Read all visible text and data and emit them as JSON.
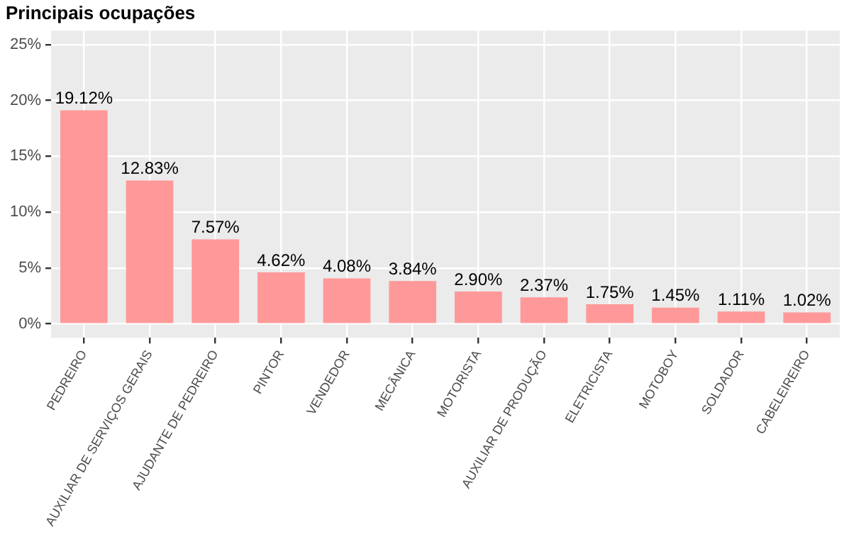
{
  "chart_data": {
    "type": "bar",
    "title": "Principais ocupações",
    "categories": [
      "PEDREIRO",
      "AUXILIAR DE SERVIÇOS GERAIS",
      "AJUDANTE DE PEDREIRO",
      "PINTOR",
      "VENDEDOR",
      "MECÂNICA",
      "MOTORISTA",
      "AUXILIAR DE PRODUÇÃO",
      "ELETRICISTA",
      "MOTOBOY",
      "SOLDADOR",
      "CABELEIREIRO"
    ],
    "values": [
      19.12,
      12.83,
      7.57,
      4.62,
      4.08,
      3.84,
      2.9,
      2.37,
      1.75,
      1.45,
      1.11,
      1.02
    ],
    "value_labels": [
      "19.12%",
      "12.83%",
      "7.57%",
      "4.62%",
      "4.08%",
      "3.84%",
      "2.90%",
      "2.37%",
      "1.75%",
      "1.45%",
      "1.11%",
      "1.02%"
    ],
    "color": "#ff9999",
    "ylim": [
      -1.25,
      26.25
    ],
    "yticks": [
      {
        "value": 0,
        "label": "0%"
      },
      {
        "value": 5,
        "label": "5%"
      },
      {
        "value": 10,
        "label": "10%"
      },
      {
        "value": 15,
        "label": "15%"
      },
      {
        "value": 20,
        "label": "20%"
      },
      {
        "value": 25,
        "label": "25%"
      }
    ],
    "grid": true,
    "legend": false
  }
}
